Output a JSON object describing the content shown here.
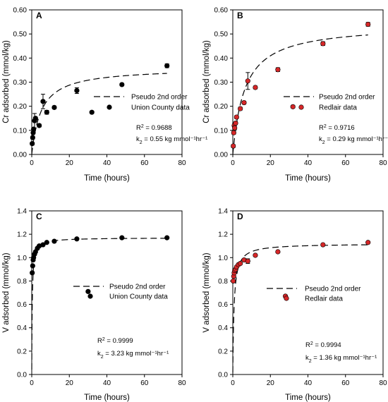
{
  "chart_data": [
    {
      "type": "scatter",
      "panel": "A",
      "xlabel": "Time (hours)",
      "ylabel": "Cr adsorbed (mmol/kg)",
      "xlim": [
        0,
        80
      ],
      "ylim": [
        0,
        0.6
      ],
      "xticks": [
        "0",
        "20",
        "40",
        "60",
        "80"
      ],
      "yticks": [
        "0.00",
        "0.10",
        "0.20",
        "0.30",
        "0.40",
        "0.50",
        "0.60"
      ],
      "marker_color": "#000000",
      "legend": {
        "placement": "right-middle",
        "fit_label": "Pseudo 2nd order",
        "data_label": "Union County data"
      },
      "annotation": {
        "r2": "= 0.9688",
        "k2": "= 0.55 kg mmol⁻¹hr⁻¹"
      },
      "series": [
        {
          "name": "Union County data",
          "x": [
            0.25,
            0.5,
            0.75,
            1,
            1.5,
            2,
            4,
            6,
            8,
            12,
            24,
            32,
            48,
            72
          ],
          "y": [
            0.045,
            0.07,
            0.09,
            0.105,
            0.14,
            0.15,
            0.12,
            0.22,
            0.175,
            0.195,
            0.265,
            0.175,
            0.29,
            0.368
          ],
          "err": [
            0.006,
            0.006,
            0.005,
            0.006,
            0.03,
            0.006,
            0.006,
            0.03,
            0.008,
            0.006,
            0.012,
            0.005,
            0.005,
            0.008
          ]
        },
        {
          "name": "Pseudo 2nd order",
          "kind": "fit",
          "qe": 0.36,
          "k2": 0.55
        }
      ]
    },
    {
      "type": "scatter",
      "panel": "B",
      "xlabel": "Time (hours)",
      "ylabel": "Cr adsorbed (mmol/kg)",
      "xlim": [
        0,
        80
      ],
      "ylim": [
        0,
        0.6
      ],
      "xticks": [
        "0",
        "20",
        "40",
        "60",
        "80"
      ],
      "yticks": [
        "0.00",
        "0.10",
        "0.20",
        "0.30",
        "0.40",
        "0.50",
        "0.60"
      ],
      "marker_color": "#d62728",
      "legend": {
        "placement": "right-middle",
        "fit_label": "Pseudo 2nd order",
        "data_label": "Redlair data"
      },
      "annotation": {
        "r2": "= 0.9716",
        "k2": "= 0.29 kg mmol⁻¹hr⁻¹"
      },
      "series": [
        {
          "name": "Redlair data",
          "x": [
            0.25,
            0.5,
            0.75,
            1,
            1.5,
            2,
            4,
            6,
            8,
            12,
            24,
            32,
            48,
            72
          ],
          "y": [
            0.035,
            0.09,
            0.12,
            0.11,
            0.13,
            0.155,
            0.19,
            0.215,
            0.305,
            0.278,
            0.352,
            0.198,
            0.46,
            0.54
          ],
          "err": [
            0.006,
            0.006,
            0.006,
            0.008,
            0.006,
            0.006,
            0.006,
            0.006,
            0.035,
            0.006,
            0.008,
            0.005,
            0.008,
            0.008
          ]
        },
        {
          "name": "Pseudo 2nd order",
          "kind": "fit",
          "qe": 0.54,
          "k2": 0.29
        }
      ]
    },
    {
      "type": "scatter",
      "panel": "C",
      "xlabel": "Time (hours)",
      "ylabel": "V adsorbed (mmol/kg)",
      "xlim": [
        0,
        80
      ],
      "ylim": [
        0,
        1.4
      ],
      "xticks": [
        "0",
        "20",
        "40",
        "60",
        "80"
      ],
      "yticks": [
        "0.0",
        "0.2",
        "0.4",
        "0.6",
        "0.8",
        "1.0",
        "1.2",
        "1.4"
      ],
      "marker_color": "#000000",
      "legend": {
        "placement": "right-middle",
        "fit_label": "Pseudo 2nd order",
        "data_label": "Union County data"
      },
      "annotation": {
        "r2": "= 0.9999",
        "k2": "= 3.23 kg mmol⁻¹hr⁻¹"
      },
      "series": [
        {
          "name": "Union County data",
          "x": [
            0.25,
            0.5,
            0.75,
            1,
            1.5,
            2,
            3,
            4,
            6,
            8,
            12,
            24,
            30,
            48,
            72
          ],
          "y": [
            0.87,
            0.93,
            0.98,
            1.0,
            1.03,
            1.05,
            1.08,
            1.1,
            1.11,
            1.13,
            1.14,
            1.16,
            0.71,
            1.17,
            1.17
          ],
          "err": [
            0,
            0,
            0,
            0,
            0,
            0,
            0,
            0,
            0,
            0,
            0,
            0,
            0,
            0,
            0
          ]
        },
        {
          "name": "Pseudo 2nd order",
          "kind": "fit",
          "qe": 1.17,
          "k2": 3.23
        }
      ]
    },
    {
      "type": "scatter",
      "panel": "D",
      "xlabel": "Time (hours)",
      "ylabel": "V adsorbed (mmol/kg)",
      "xlim": [
        0,
        80
      ],
      "ylim": [
        0,
        1.4
      ],
      "xticks": [
        "0",
        "20",
        "40",
        "60",
        "80"
      ],
      "yticks": [
        "0.0",
        "0.2",
        "0.4",
        "0.6",
        "0.8",
        "1.0",
        "1.2",
        "1.4"
      ],
      "marker_color": "#d62728",
      "legend": {
        "placement": "right-middle",
        "fit_label": "Pseudo 2nd order",
        "data_label": "Redlair data"
      },
      "annotation": {
        "r2": "= 0.9994",
        "k2": "= 1.36 kg mmol⁻¹hr⁻¹"
      },
      "series": [
        {
          "name": "Redlair data",
          "x": [
            0.25,
            0.5,
            0.75,
            1,
            1.5,
            2,
            3,
            4,
            6,
            8,
            12,
            24,
            28,
            48,
            72
          ],
          "y": [
            0.8,
            0.84,
            0.87,
            0.89,
            0.9,
            0.92,
            0.94,
            0.95,
            0.98,
            0.97,
            1.02,
            1.05,
            0.67,
            1.11,
            1.13
          ],
          "err": [
            0,
            0,
            0,
            0,
            0,
            0,
            0,
            0,
            0,
            0.02,
            0,
            0,
            0,
            0,
            0
          ]
        },
        {
          "name": "Pseudo 2nd order",
          "kind": "fit",
          "qe": 1.12,
          "k2": 1.36
        }
      ]
    }
  ]
}
